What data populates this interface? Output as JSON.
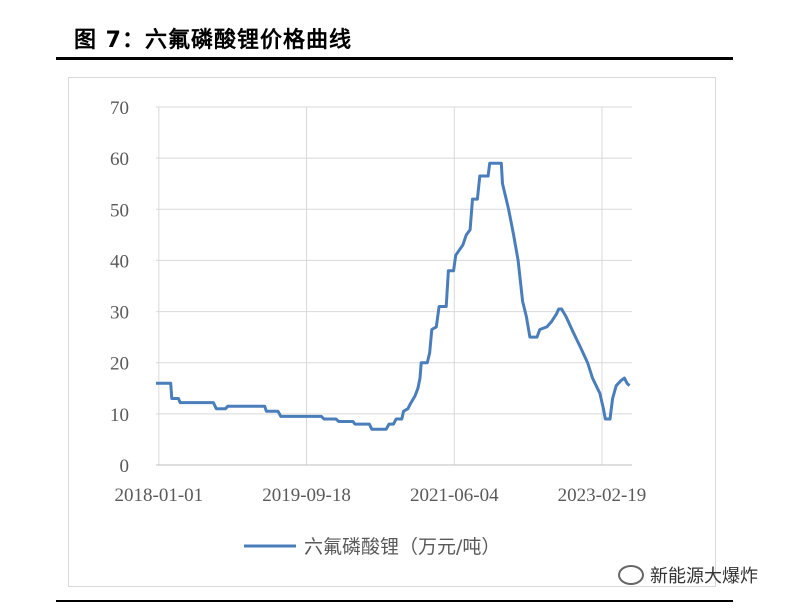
{
  "figure": {
    "title": "图 7：六氟磷酸锂价格曲线"
  },
  "watermark": {
    "text": "新能源大爆炸",
    "icon": "wechat-icon"
  },
  "chart_data": {
    "type": "line",
    "title": "",
    "xlabel": "",
    "ylabel": "",
    "ylim": [
      0,
      70
    ],
    "yticks": [
      0,
      10,
      20,
      30,
      40,
      50,
      60,
      70
    ],
    "xticks": [
      "2018-01-01",
      "2019-09-18",
      "2021-06-04",
      "2023-02-19"
    ],
    "xlim": [
      "2017-12-20",
      "2023-06-26"
    ],
    "grid": true,
    "legend_position": "bottom",
    "series": [
      {
        "name": "六氟磷酸锂（万元/吨）",
        "color": "#4a7ebb",
        "points": [
          [
            "2017-12-20",
            16
          ],
          [
            "2018-02-20",
            16
          ],
          [
            "2018-02-25",
            13
          ],
          [
            "2018-03-25",
            13
          ],
          [
            "2018-04-01",
            12.2
          ],
          [
            "2018-08-20",
            12.2
          ],
          [
            "2018-09-01",
            11
          ],
          [
            "2018-10-10",
            11
          ],
          [
            "2018-10-20",
            11.5
          ],
          [
            "2019-03-25",
            11.5
          ],
          [
            "2019-04-01",
            10.5
          ],
          [
            "2019-05-20",
            10.5
          ],
          [
            "2019-06-01",
            9.5
          ],
          [
            "2019-11-20",
            9.5
          ],
          [
            "2019-12-01",
            9
          ],
          [
            "2020-01-20",
            9
          ],
          [
            "2020-02-01",
            8.5
          ],
          [
            "2020-04-01",
            8.5
          ],
          [
            "2020-04-10",
            8
          ],
          [
            "2020-06-10",
            8
          ],
          [
            "2020-06-20",
            7
          ],
          [
            "2020-08-20",
            7
          ],
          [
            "2020-09-01",
            8
          ],
          [
            "2020-09-20",
            8
          ],
          [
            "2020-10-01",
            9
          ],
          [
            "2020-10-25",
            9
          ],
          [
            "2020-11-01",
            10.5
          ],
          [
            "2020-11-20",
            11
          ],
          [
            "2020-12-01",
            12
          ],
          [
            "2020-12-20",
            13.5
          ],
          [
            "2021-01-01",
            15
          ],
          [
            "2021-01-10",
            17
          ],
          [
            "2021-01-15",
            20
          ],
          [
            "2021-02-10",
            20
          ],
          [
            "2021-02-20",
            22
          ],
          [
            "2021-03-01",
            26.5
          ],
          [
            "2021-03-20",
            27
          ],
          [
            "2021-04-01",
            31
          ],
          [
            "2021-05-01",
            31
          ],
          [
            "2021-05-10",
            38
          ],
          [
            "2021-06-01",
            38
          ],
          [
            "2021-06-10",
            41
          ],
          [
            "2021-06-25",
            42
          ],
          [
            "2021-07-10",
            43
          ],
          [
            "2021-07-25",
            45
          ],
          [
            "2021-08-10",
            46
          ],
          [
            "2021-08-20",
            52
          ],
          [
            "2021-09-10",
            52
          ],
          [
            "2021-09-20",
            56.5
          ],
          [
            "2021-10-25",
            56.5
          ],
          [
            "2021-11-01",
            59
          ],
          [
            "2021-12-20",
            59
          ],
          [
            "2021-12-25",
            55
          ],
          [
            "2022-01-20",
            50
          ],
          [
            "2022-02-10",
            45
          ],
          [
            "2022-03-01",
            40
          ],
          [
            "2022-03-20",
            32
          ],
          [
            "2022-04-05",
            29
          ],
          [
            "2022-04-20",
            25
          ],
          [
            "2022-05-20",
            25
          ],
          [
            "2022-06-01",
            26.5
          ],
          [
            "2022-07-01",
            27
          ],
          [
            "2022-07-20",
            28
          ],
          [
            "2022-08-10",
            29.5
          ],
          [
            "2022-08-20",
            30.5
          ],
          [
            "2022-09-01",
            30.5
          ],
          [
            "2022-09-20",
            29
          ],
          [
            "2022-10-20",
            26
          ],
          [
            "2022-11-20",
            23
          ],
          [
            "2022-12-20",
            20
          ],
          [
            "2023-01-10",
            17
          ],
          [
            "2023-02-10",
            14
          ],
          [
            "2023-02-25",
            11
          ],
          [
            "2023-03-05",
            9
          ],
          [
            "2023-03-25",
            9
          ],
          [
            "2023-04-05",
            13
          ],
          [
            "2023-04-20",
            15.5
          ],
          [
            "2023-05-10",
            16.5
          ],
          [
            "2023-05-25",
            17
          ],
          [
            "2023-06-05",
            16
          ],
          [
            "2023-06-15",
            15.5
          ]
        ]
      }
    ]
  }
}
